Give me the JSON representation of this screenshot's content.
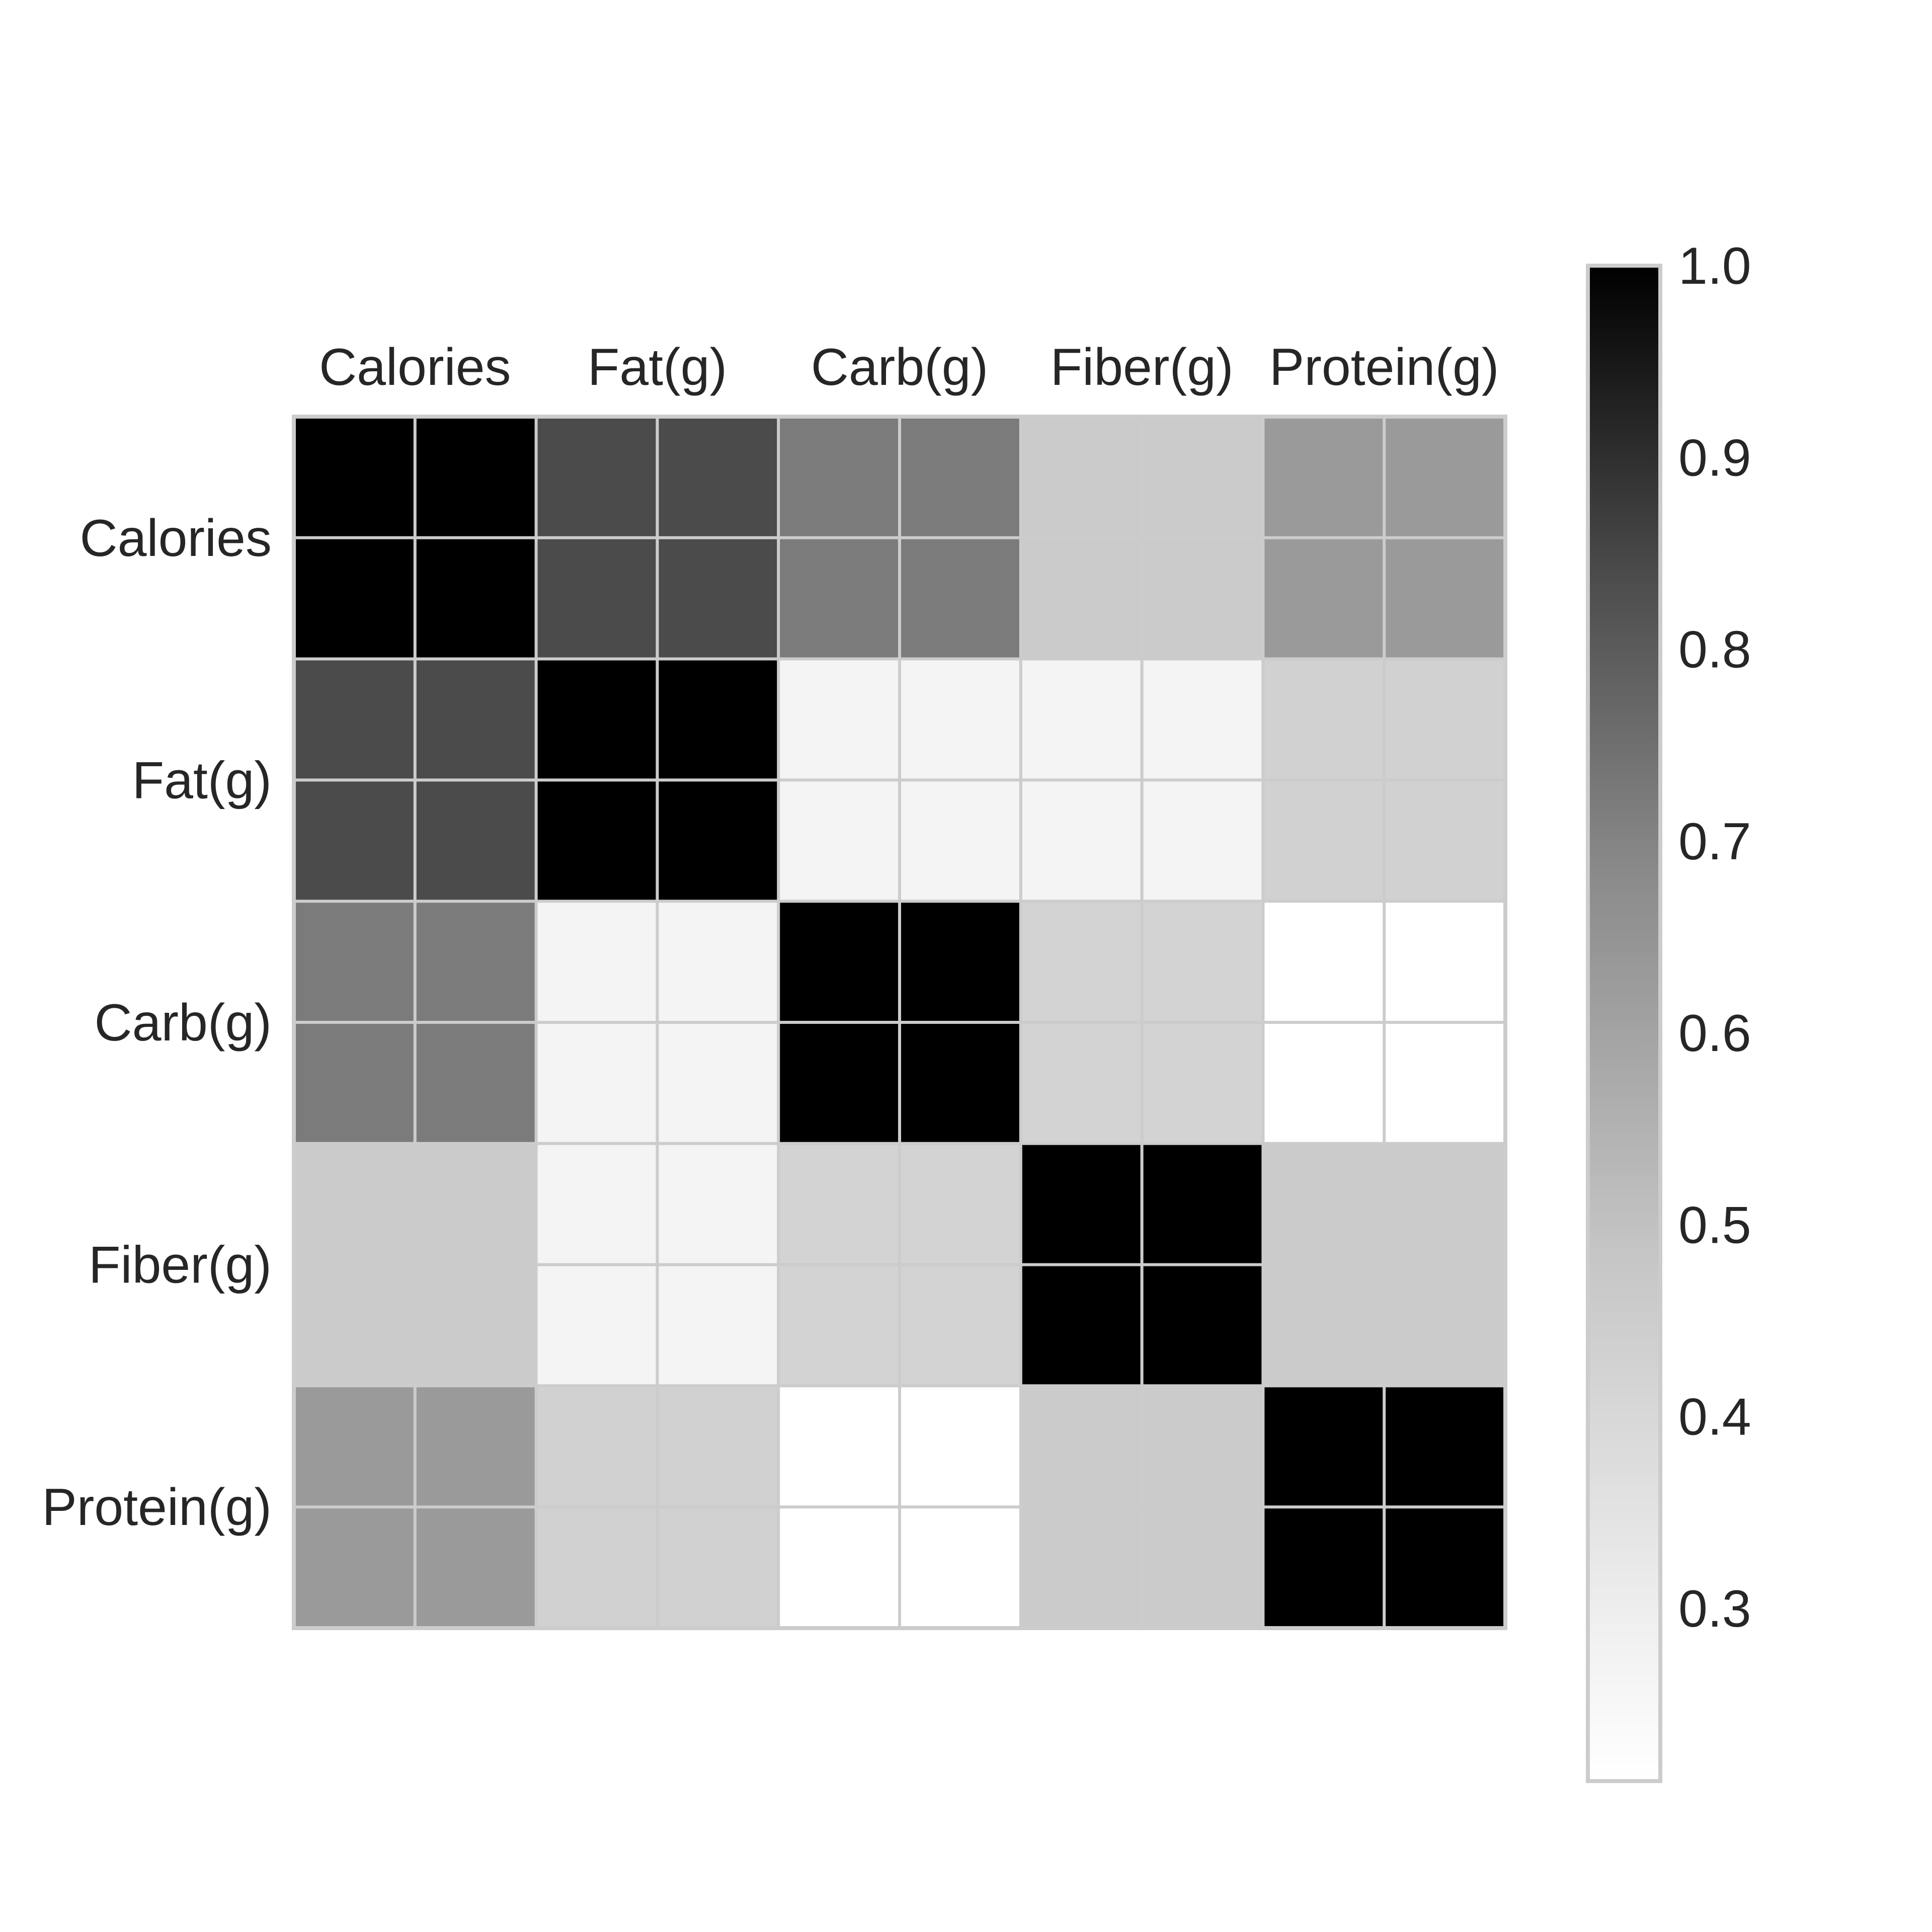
{
  "chart_data": {
    "type": "heatmap",
    "title": "",
    "xlabel": "",
    "ylabel": "",
    "x_categories": [
      "Calories",
      "Fat(g)",
      "Carb(g)",
      "Fiber(g)",
      "Protein(g)"
    ],
    "y_categories": [
      "Calories",
      "Fat(g)",
      "Carb(g)",
      "Fiber(g)",
      "Protein(g)"
    ],
    "values": [
      [
        1.0,
        0.84,
        0.72,
        0.46,
        0.63
      ],
      [
        0.84,
        1.0,
        0.27,
        0.27,
        0.43
      ],
      [
        0.72,
        0.27,
        1.0,
        0.42,
        0.21
      ],
      [
        0.46,
        0.27,
        0.42,
        1.0,
        0.46
      ],
      [
        0.63,
        0.43,
        0.21,
        0.46,
        1.0
      ]
    ],
    "colormap": "Greys",
    "colorbar": {
      "range": [
        0.21,
        1.0
      ],
      "ticks": [
        "0.3",
        "0.4",
        "0.5",
        "0.6",
        "0.7",
        "0.8",
        "0.9",
        "1.0"
      ],
      "tick_values": [
        0.3,
        0.4,
        0.5,
        0.6,
        0.7,
        0.8,
        0.9,
        1.0
      ]
    },
    "x_tick_position": "top",
    "grid": true,
    "colors": {
      "grid": "#cccccc",
      "text": "#262626",
      "low": "#ffffff",
      "high": "#000000"
    }
  }
}
